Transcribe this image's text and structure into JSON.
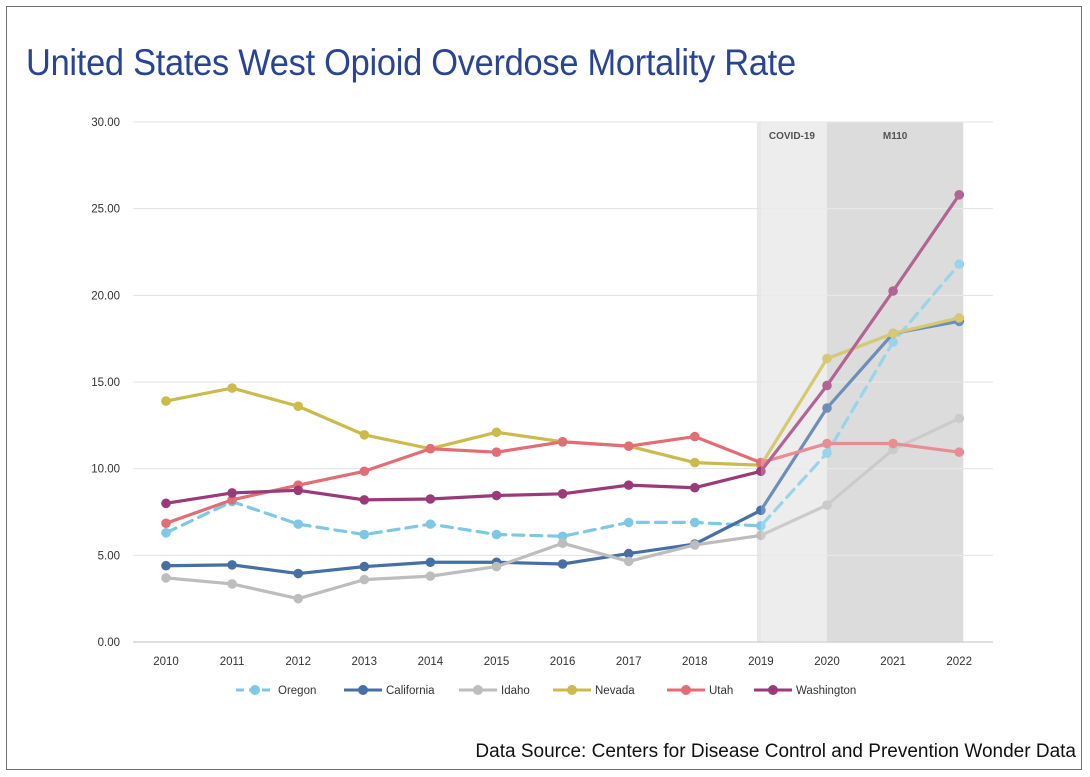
{
  "page": {
    "title": "United States West Opioid Overdose Mortality Rate",
    "source": "Data Source: Centers for Disease Control and Prevention Wonder Data"
  },
  "chart_data": {
    "type": "line",
    "title": "United States West Opioid Overdose Mortality Rate",
    "xlabel": "",
    "ylabel": "",
    "x": [
      "2010",
      "2011",
      "2012",
      "2013",
      "2014",
      "2015",
      "2016",
      "2017",
      "2018",
      "2019",
      "2020",
      "2021",
      "2022"
    ],
    "ylim": [
      0,
      30
    ],
    "yticks": [
      "0.00",
      "5.00",
      "10.00",
      "15.00",
      "20.00",
      "25.00",
      "30.00"
    ],
    "grid": true,
    "legend": "bottom",
    "shaded_regions": [
      {
        "label": "COVID-19",
        "from": "2019",
        "to": "2020",
        "color": "#e8e8e8"
      },
      {
        "label": "M110",
        "from": "2020",
        "to": "2022",
        "color": "#d3d3d3"
      }
    ],
    "series": [
      {
        "name": "Oregon",
        "color": "#7ec8e6",
        "dashed": true,
        "values": [
          6.3,
          8.1,
          6.8,
          6.2,
          6.8,
          6.2,
          6.1,
          6.9,
          6.9,
          6.7,
          10.9,
          17.3,
          21.8
        ]
      },
      {
        "name": "California",
        "color": "#466fa4",
        "dashed": false,
        "values": [
          4.4,
          4.45,
          3.95,
          4.35,
          4.6,
          4.6,
          4.5,
          5.1,
          5.65,
          7.6,
          13.5,
          17.8,
          18.5
        ]
      },
      {
        "name": "Idaho",
        "color": "#bdbdbd",
        "dashed": false,
        "values": [
          3.7,
          3.35,
          2.5,
          3.6,
          3.8,
          4.35,
          5.7,
          4.65,
          5.6,
          6.15,
          7.9,
          11.1,
          12.9
        ]
      },
      {
        "name": "Nevada",
        "color": "#cbba4c",
        "dashed": false,
        "values": [
          13.9,
          14.65,
          13.6,
          11.95,
          11.15,
          12.1,
          11.55,
          11.3,
          10.35,
          10.2,
          16.35,
          17.8,
          18.7
        ]
      },
      {
        "name": "Utah",
        "color": "#e26d75",
        "dashed": false,
        "values": [
          6.85,
          8.2,
          9.05,
          9.85,
          11.15,
          10.95,
          11.55,
          11.3,
          11.85,
          10.35,
          11.45,
          11.45,
          10.95
        ]
      },
      {
        "name": "Washington",
        "color": "#9b3a78",
        "dashed": false,
        "values": [
          8.0,
          8.6,
          8.75,
          8.2,
          8.25,
          8.45,
          8.55,
          9.05,
          8.9,
          9.85,
          14.8,
          20.25,
          25.8
        ]
      }
    ]
  }
}
